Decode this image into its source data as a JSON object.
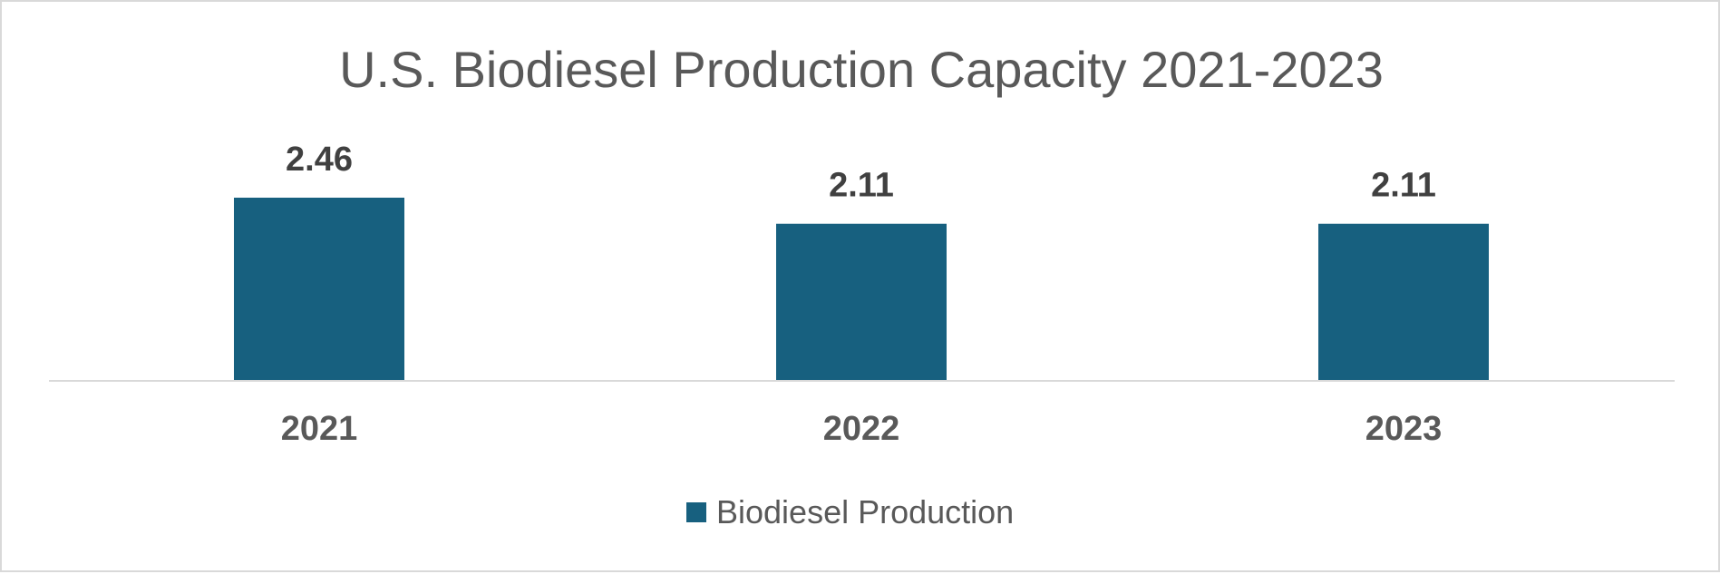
{
  "chart_data": {
    "type": "bar",
    "title": "U.S. Biodiesel Production Capacity 2021-2023",
    "categories": [
      "2021",
      "2022",
      "2023"
    ],
    "series": [
      {
        "name": "Biodiesel Production",
        "values": [
          2.46,
          2.11,
          2.11
        ],
        "labels": [
          "2.46",
          "2.11",
          "2.11"
        ],
        "color": "#17607f"
      }
    ],
    "ylim": [
      0,
      2.46
    ],
    "grid": false,
    "legend": "bottom",
    "data_labels": true
  }
}
